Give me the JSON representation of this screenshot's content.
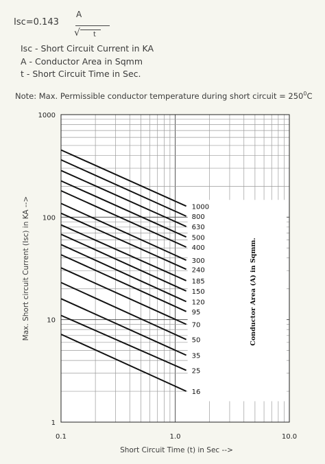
{
  "formula": {
    "lhs": "Isc=0.143",
    "numerator": "A",
    "root_symbol": "√",
    "denominator": "t"
  },
  "legend": [
    "Isc - Short Circuit Current in KA",
    "A - Conductor Area in Sqmm",
    "t - Short Circuit Time in Sec."
  ],
  "note": {
    "text": "Note: Max. Permissible conductor temperature during short circuit = 250",
    "sup": "0",
    "unit": "C"
  },
  "chart_data": {
    "type": "line",
    "xlabel": "Short Circuit Time (t) in Sec -->",
    "ylabel": "Max. Short circuit Current (Isc) in KA -->",
    "series_group_label": "Conductor Area (A) in Sqmm.",
    "xscale": "log",
    "yscale": "log",
    "xlim": [
      0.1,
      10
    ],
    "ylim": [
      1,
      1000
    ],
    "x_ticks": [
      "0.1",
      "1.0",
      "10.0"
    ],
    "y_ticks": [
      "1",
      "10",
      "100",
      "1000"
    ],
    "grid": true,
    "line_color": "#111111",
    "x": [
      0.1,
      1.25
    ],
    "series": [
      {
        "name": "1000",
        "values": [
          452,
          128
        ]
      },
      {
        "name": "800",
        "values": [
          362,
          102
        ]
      },
      {
        "name": "630",
        "values": [
          285,
          81
        ]
      },
      {
        "name": "500",
        "values": [
          226,
          64
        ]
      },
      {
        "name": "400",
        "values": [
          181,
          51
        ]
      },
      {
        "name": "300",
        "values": [
          136,
          38
        ]
      },
      {
        "name": "240",
        "values": [
          109,
          31
        ]
      },
      {
        "name": "185",
        "values": [
          84,
          24
        ]
      },
      {
        "name": "150",
        "values": [
          68,
          19
        ]
      },
      {
        "name": "120",
        "values": [
          54,
          15
        ]
      },
      {
        "name": "95",
        "values": [
          43,
          12
        ]
      },
      {
        "name": "70",
        "values": [
          32,
          9
        ]
      },
      {
        "name": "50",
        "values": [
          23,
          6.4
        ]
      },
      {
        "name": "35",
        "values": [
          16,
          4.5
        ]
      },
      {
        "name": "25",
        "values": [
          11,
          3.2
        ]
      },
      {
        "name": "16",
        "values": [
          7.2,
          2.0
        ]
      }
    ]
  }
}
